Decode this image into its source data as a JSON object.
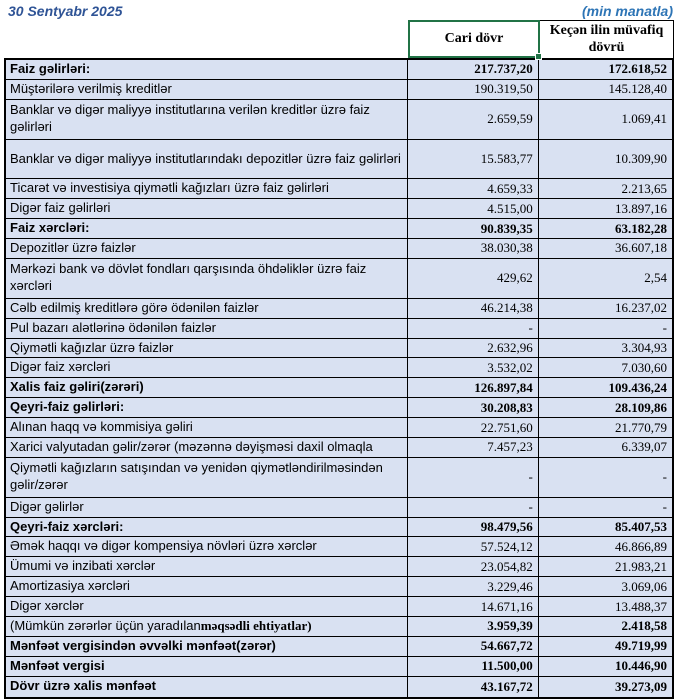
{
  "header": {
    "date": "30 Sentyabr 2025",
    "unit_note": "(min manatla)"
  },
  "colors": {
    "row_fill": "#D9E1F2",
    "selection_green": "#217346",
    "date_text": "#2F5496",
    "unit_note_text": "#2E75B6",
    "grid_border": "#000000"
  },
  "table": {
    "columns": [
      {
        "label": "Cari dövr",
        "selected": true
      },
      {
        "label": "Keçən ilin müvafiq dövrü",
        "selected": false
      }
    ],
    "rows": [
      {
        "label": "Faiz gəlirləri:",
        "current": "217.737,20",
        "previous": "172.618,52",
        "bold": true
      },
      {
        "label": "Müştərilərə verilmiş kreditlər",
        "current": "190.319,50",
        "previous": "145.128,40"
      },
      {
        "label": "Banklar və digər maliyyə institutlarına verilən kreditlər üzrə faiz gəlirləri",
        "current": "2.659,59",
        "previous": "1.069,41",
        "tall": true
      },
      {
        "label": "Banklar və digər maliyyə institutlarındakı depozitlər üzrə faiz gəlirləri",
        "current": "15.583,77",
        "previous": "10.309,90",
        "tall": true
      },
      {
        "label": "Ticarət və investisiya qiymətli kağızları üzrə faiz gəlirləri",
        "current": "4.659,33",
        "previous": "2.213,65"
      },
      {
        "label": "Digər faiz gəlirləri",
        "current": "4.515,00",
        "previous": "13.897,16"
      },
      {
        "label": "Faiz xərcləri:",
        "current": "90.839,35",
        "previous": "63.182,28",
        "bold": true
      },
      {
        "label": "Depozitlər üzrə faizlər",
        "current": "38.030,38",
        "previous": "36.607,18"
      },
      {
        "label": "Mərkəzi bank və dövlət fondları qarşısında öhdəliklər üzrə faiz xərcləri",
        "current": "429,62",
        "previous": "2,54",
        "tall": true
      },
      {
        "label": "Cəlb edilmiş kreditlərə görə ödənilən faizlər",
        "current": "46.214,38",
        "previous": "16.237,02"
      },
      {
        "label": "Pul bazarı alətlərinə ödənilən faizlər",
        "current": "-",
        "previous": "-"
      },
      {
        "label": "Qiymətli kağızlar üzrə faizlər",
        "current": "2.632,96",
        "previous": "3.304,93"
      },
      {
        "label": "Digər faiz xərcləri",
        "current": "3.532,02",
        "previous": "7.030,60"
      },
      {
        "label": "Xalis faiz gəliri(zərəri)",
        "current": "126.897,84",
        "previous": "109.436,24",
        "bold": true
      },
      {
        "label": "Qeyri-faiz gəlirləri:",
        "current": "30.208,83",
        "previous": "28.109,86",
        "bold": true
      },
      {
        "label": "Alınan haqq və kommisiya gəliri",
        "current": "22.751,60",
        "previous": "21.770,79"
      },
      {
        "label": "Xarici valyutadan gəlir/zərər (məzənnə dəyişməsi daxil olmaqla",
        "current": "7.457,23",
        "previous": "6.339,07"
      },
      {
        "label": "Qiymətli kağızların satışından və yenidən qiymətləndirilməsindən gəlir/zərər",
        "current": "-",
        "previous": "-",
        "tall": true
      },
      {
        "label": "Digər gəlirlər",
        "current": "-",
        "previous": "-"
      },
      {
        "label": "Qeyri-faiz xərcləri:",
        "current": "98.479,56",
        "previous": "85.407,53",
        "bold": true
      },
      {
        "label": "Əmək haqqı və digər kompensiya növləri üzrə xərclər",
        "current": "57.524,12",
        "previous": "46.866,89"
      },
      {
        "label": "Ümumi və inzibati xərclər",
        "current": "23.054,82",
        "previous": "21.983,21"
      },
      {
        "label": "Amortizasiya xərcləri",
        "current": "3.229,46",
        "previous": "3.069,06"
      },
      {
        "label": "Digər xərclər",
        "current": "14.671,16",
        "previous": "13.488,37"
      },
      {
        "label": "(Mümkün zərərlər üçün yaradılan ",
        "label_bold_suffix": "məqsədli ehtiyatlar)",
        "current": "3.959,39",
        "previous": "2.418,58",
        "numbers_bold": true
      },
      {
        "label": "Mənfəət vergisindən əvvəlki mənfəət(zərər)",
        "current": "54.667,72",
        "previous": "49.719,99",
        "bold": true
      },
      {
        "label": "Mənfəət vergisi",
        "current": "11.500,00",
        "previous": "10.446,90",
        "bold": true
      },
      {
        "label": "Dövr üzrə xalis mənfəət",
        "current": "43.167,72",
        "previous": "39.273,09",
        "bold": true
      }
    ]
  }
}
